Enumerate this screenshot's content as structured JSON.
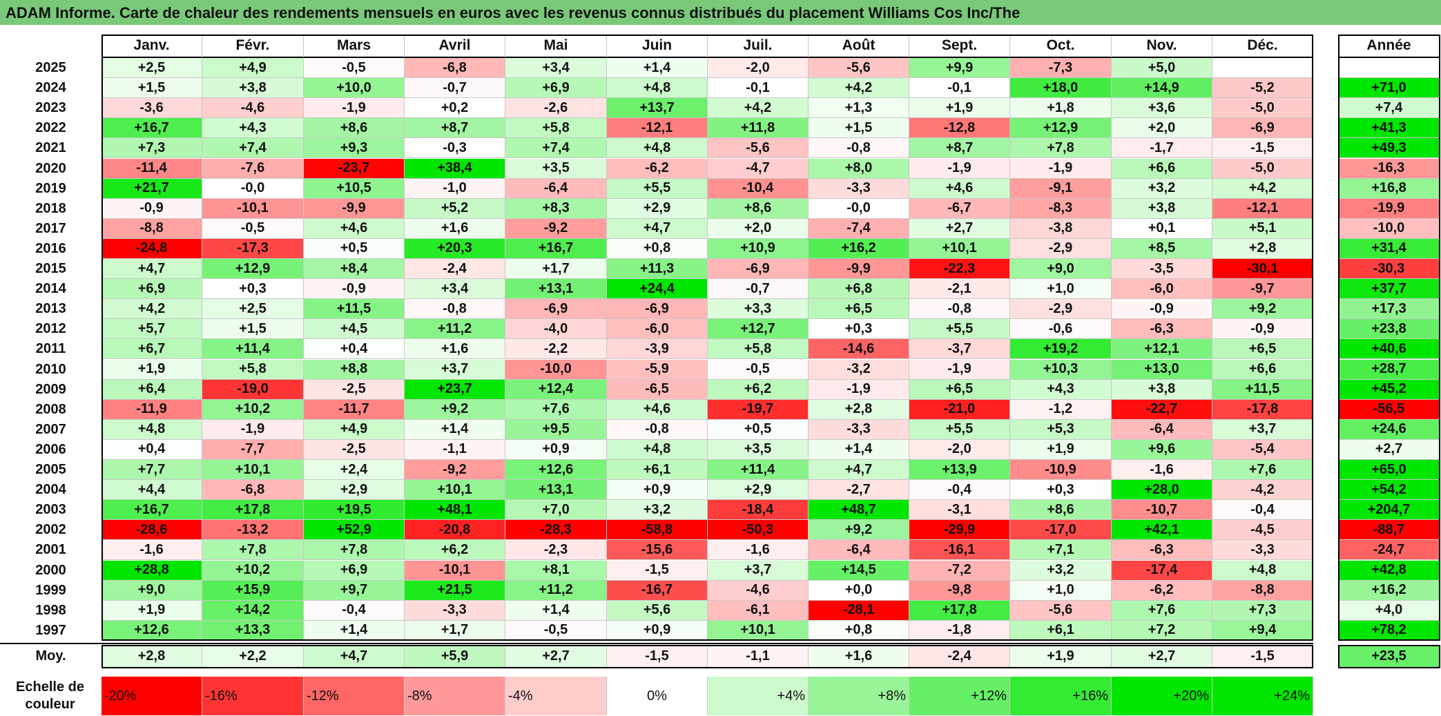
{
  "title": "ADAM Informe. Carte de chaleur des rendements mensuels en euros avec les revenus connus distribués du placement Williams Cos Inc/The",
  "colors": {
    "title_bg": "#7ac97a",
    "max_red": "#ff0000",
    "max_green": "#00e600"
  },
  "chart_data": {
    "type": "heatmap",
    "title": "ADAM Informe. Carte de chaleur des rendements mensuels en euros avec les revenus connus distribués du placement Williams Cos Inc/The",
    "months": [
      "Janv.",
      "Févr.",
      "Mars",
      "Avril",
      "Mai",
      "Juin",
      "Juil.",
      "Août",
      "Sept.",
      "Oct.",
      "Nov.",
      "Déc."
    ],
    "year_header": "Année",
    "rows": [
      {
        "year": "2025",
        "m": [
          "+2,5",
          "+4,9",
          "-0,5",
          "-6,8",
          "+3,4",
          "+1,4",
          "-2,0",
          "-5,6",
          "+9,9",
          "-7,3",
          "+5,0",
          ""
        ],
        "annual": ""
      },
      {
        "year": "2024",
        "m": [
          "+1,5",
          "+3,8",
          "+10,0",
          "-0,7",
          "+6,9",
          "+4,8",
          "-0,1",
          "+4,2",
          "-0,1",
          "+18,0",
          "+14,9",
          "-5,2"
        ],
        "annual": "+71,0"
      },
      {
        "year": "2023",
        "m": [
          "-3,6",
          "-4,6",
          "-1,9",
          "+0,2",
          "-2,6",
          "+13,7",
          "+4,2",
          "+1,3",
          "+1,9",
          "+1,8",
          "+3,6",
          "-5,0"
        ],
        "annual": "+7,4"
      },
      {
        "year": "2022",
        "m": [
          "+16,7",
          "+4,3",
          "+8,6",
          "+8,7",
          "+5,8",
          "-12,1",
          "+11,8",
          "+1,5",
          "-12,8",
          "+12,9",
          "+2,0",
          "-6,9"
        ],
        "annual": "+41,3"
      },
      {
        "year": "2021",
        "m": [
          "+7,3",
          "+7,4",
          "+9,3",
          "-0,3",
          "+7,4",
          "+4,8",
          "-5,6",
          "-0,8",
          "+8,7",
          "+7,8",
          "-1,7",
          "-1,5"
        ],
        "annual": "+49,3"
      },
      {
        "year": "2020",
        "m": [
          "-11,4",
          "-7,6",
          "-23,7",
          "+38,4",
          "+3,5",
          "-6,2",
          "-4,7",
          "+8,0",
          "-1,9",
          "-1,9",
          "+6,6",
          "-5,0"
        ],
        "annual": "-16,3"
      },
      {
        "year": "2019",
        "m": [
          "+21,7",
          "-0,0",
          "+10,5",
          "-1,0",
          "-6,4",
          "+5,5",
          "-10,4",
          "-3,3",
          "+4,6",
          "-9,1",
          "+3,2",
          "+4,2"
        ],
        "annual": "+16,8"
      },
      {
        "year": "2018",
        "m": [
          "-0,9",
          "-10,1",
          "-9,9",
          "+5,2",
          "+8,3",
          "+2,9",
          "+8,6",
          "-0,0",
          "-6,7",
          "-8,3",
          "+3,8",
          "-12,1"
        ],
        "annual": "-19,9"
      },
      {
        "year": "2017",
        "m": [
          "-8,8",
          "-0,5",
          "+4,6",
          "+1,6",
          "-9,2",
          "+4,7",
          "+2,0",
          "-7,4",
          "+2,7",
          "-3,8",
          "+0,1",
          "+5,1"
        ],
        "annual": "-10,0"
      },
      {
        "year": "2016",
        "m": [
          "-24,8",
          "-17,3",
          "+0,5",
          "+20,3",
          "+16,7",
          "+0,8",
          "+10,9",
          "+16,2",
          "+10,1",
          "-2,9",
          "+8,5",
          "+2,8"
        ],
        "annual": "+31,4"
      },
      {
        "year": "2015",
        "m": [
          "+4,7",
          "+12,9",
          "+8,4",
          "-2,4",
          "+1,7",
          "+11,3",
          "-6,9",
          "-9,9",
          "-22,3",
          "+9,0",
          "-3,5",
          "-30,1"
        ],
        "annual": "-30,3"
      },
      {
        "year": "2014",
        "m": [
          "+6,9",
          "+0,3",
          "-0,9",
          "+3,4",
          "+13,1",
          "+24,4",
          "-0,7",
          "+6,8",
          "-2,1",
          "+1,0",
          "-6,0",
          "-9,7"
        ],
        "annual": "+37,7"
      },
      {
        "year": "2013",
        "m": [
          "+4,2",
          "+2,5",
          "+11,5",
          "-0,8",
          "-6,9",
          "-6,9",
          "+3,3",
          "+6,5",
          "-0,8",
          "-2,9",
          "-0,9",
          "+9,2"
        ],
        "annual": "+17,3"
      },
      {
        "year": "2012",
        "m": [
          "+5,7",
          "+1,5",
          "+4,5",
          "+11,2",
          "-4,0",
          "-6,0",
          "+12,7",
          "+0,3",
          "+5,5",
          "-0,6",
          "-6,3",
          "-0,9"
        ],
        "annual": "+23,8"
      },
      {
        "year": "2011",
        "m": [
          "+6,7",
          "+11,4",
          "+0,4",
          "+1,6",
          "-2,2",
          "-3,9",
          "+5,8",
          "-14,6",
          "-3,7",
          "+19,2",
          "+12,1",
          "+6,5"
        ],
        "annual": "+40,6"
      },
      {
        "year": "2010",
        "m": [
          "+1,9",
          "+5,8",
          "+8,8",
          "+3,7",
          "-10,0",
          "-5,9",
          "-0,5",
          "-3,2",
          "-1,9",
          "+10,3",
          "+13,0",
          "+6,6"
        ],
        "annual": "+28,7"
      },
      {
        "year": "2009",
        "m": [
          "+6,4",
          "-19,0",
          "-2,5",
          "+23,7",
          "+12,4",
          "-6,5",
          "+6,2",
          "-1,9",
          "+6,5",
          "+4,3",
          "+3,8",
          "+11,5"
        ],
        "annual": "+45,2"
      },
      {
        "year": "2008",
        "m": [
          "-11,9",
          "+10,2",
          "-11,7",
          "+9,2",
          "+7,6",
          "+4,6",
          "-19,7",
          "+2,8",
          "-21,0",
          "-1,2",
          "-22,7",
          "-17,8"
        ],
        "annual": "-56,5"
      },
      {
        "year": "2007",
        "m": [
          "+4,8",
          "-1,9",
          "+4,9",
          "+1,4",
          "+9,5",
          "-0,8",
          "+0,5",
          "-3,3",
          "+5,5",
          "+5,3",
          "-6,4",
          "+3,7"
        ],
        "annual": "+24,6"
      },
      {
        "year": "2006",
        "m": [
          "+0,4",
          "-7,7",
          "-2,5",
          "-1,1",
          "+0,9",
          "+4,8",
          "+3,5",
          "+1,4",
          "-2,0",
          "+1,9",
          "+9,6",
          "-5,4"
        ],
        "annual": "+2,7"
      },
      {
        "year": "2005",
        "m": [
          "+7,7",
          "+10,1",
          "+2,4",
          "-9,2",
          "+12,6",
          "+6,1",
          "+11,4",
          "+4,7",
          "+13,9",
          "-10,9",
          "-1,6",
          "+7,6"
        ],
        "annual": "+65,0"
      },
      {
        "year": "2004",
        "m": [
          "+4,4",
          "-6,8",
          "+2,9",
          "+10,1",
          "+13,1",
          "+0,9",
          "+2,9",
          "-2,7",
          "-0,4",
          "+0,3",
          "+28,0",
          "-4,2"
        ],
        "annual": "+54,2"
      },
      {
        "year": "2003",
        "m": [
          "+16,7",
          "+17,8",
          "+19,5",
          "+48,1",
          "+7,0",
          "+3,2",
          "-18,4",
          "+48,7",
          "-3,1",
          "+8,6",
          "-10,7",
          "-0,4"
        ],
        "annual": "+204,7"
      },
      {
        "year": "2002",
        "m": [
          "-28,6",
          "-13,2",
          "+52,9",
          "-20,8",
          "-28,3",
          "-58,8",
          "-50,3",
          "+9,2",
          "-29,9",
          "-17,0",
          "+42,1",
          "-4,5"
        ],
        "annual": "-88,7"
      },
      {
        "year": "2001",
        "m": [
          "-1,6",
          "+7,8",
          "+7,8",
          "+6,2",
          "-2,3",
          "-15,6",
          "-1,6",
          "-6,4",
          "-16,1",
          "+7,1",
          "-6,3",
          "-3,3"
        ],
        "annual": "-24,7"
      },
      {
        "year": "2000",
        "m": [
          "+28,8",
          "+10,2",
          "+6,9",
          "-10,1",
          "+8,1",
          "-1,5",
          "+3,7",
          "+14,5",
          "-7,2",
          "+3,2",
          "-17,4",
          "+4,8"
        ],
        "annual": "+42,8"
      },
      {
        "year": "1999",
        "m": [
          "+9,0",
          "+15,9",
          "+9,7",
          "+21,5",
          "+11,2",
          "-16,7",
          "-4,6",
          "+0,0",
          "-9,8",
          "+1,0",
          "-6,2",
          "-8,8"
        ],
        "annual": "+16,2"
      },
      {
        "year": "1998",
        "m": [
          "+1,9",
          "+14,2",
          "-0,4",
          "-3,3",
          "+1,4",
          "+5,6",
          "-6,1",
          "-28,1",
          "+17,8",
          "-5,6",
          "+7,6",
          "+7,3"
        ],
        "annual": "+4,0"
      },
      {
        "year": "1997",
        "m": [
          "+12,6",
          "+13,3",
          "+1,4",
          "+1,7",
          "-0,5",
          "+0,9",
          "+10,1",
          "+0,8",
          "-1,8",
          "+6,1",
          "+7,2",
          "+9,4"
        ],
        "annual": "+78,2"
      }
    ],
    "average": {
      "label": "Moy.",
      "m": [
        "+2,8",
        "+2,2",
        "+4,7",
        "+5,9",
        "+2,7",
        "-1,5",
        "-1,1",
        "+1,6",
        "-2,4",
        "+1,9",
        "+2,7",
        "-1,5"
      ],
      "annual": "+23,5"
    },
    "scale": {
      "label": "Echelle de couleur",
      "items": [
        {
          "text": "-20%",
          "value": -20
        },
        {
          "text": "-16%",
          "value": -16
        },
        {
          "text": "-12%",
          "value": -12
        },
        {
          "text": "-8%",
          "value": -8
        },
        {
          "text": "-4%",
          "value": -4
        },
        {
          "text": "0%",
          "value": 0
        },
        {
          "text": "+4%",
          "value": 4
        },
        {
          "text": "+8%",
          "value": 8
        },
        {
          "text": "+12%",
          "value": 12
        },
        {
          "text": "+16%",
          "value": 16
        },
        {
          "text": "+20%",
          "value": 20
        },
        {
          "text": "+24%",
          "value": 24
        }
      ]
    }
  }
}
